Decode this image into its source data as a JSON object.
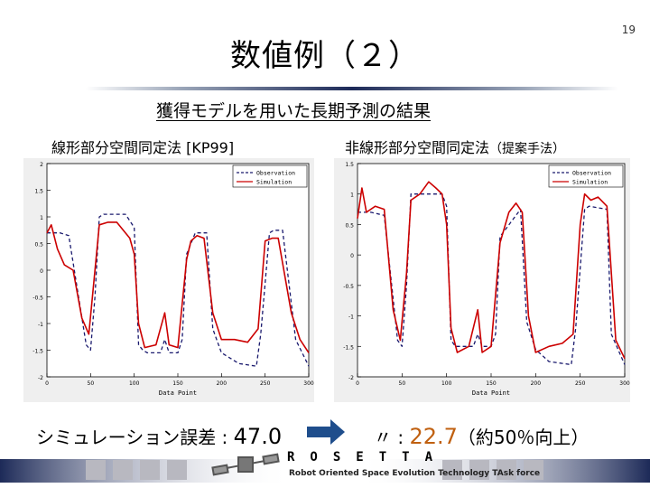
{
  "page_number": "19",
  "title": "数値例（２）",
  "subtitle": "獲得モデルを用いた長期予測の結果",
  "left_label": "線形部分空間同定法 [KP99]",
  "right_label_main": "非線形部分空間同定法",
  "right_label_note": "（提案手法）",
  "result_left_text": "シミュレーション誤差 : ",
  "result_left_value": "47.0",
  "result_right_prefix": "〃 : ",
  "result_right_value": "22.7",
  "result_right_note": "（約50％向上）",
  "logo_text": "ROSETTA",
  "logo_subtext": "Robot Oriented Space Evolution Technology TAsk force",
  "colors": {
    "accent": "#c06010",
    "observation": "#1a1a6e",
    "simulation": "#cc0000",
    "arrow": "#1f4e8c"
  },
  "chart_data": [
    {
      "type": "line",
      "xlabel": "Data Point",
      "xticks": [
        "0",
        "50",
        "100",
        "150",
        "200",
        "250",
        "300"
      ],
      "yticks": [
        "-2",
        "-1.5",
        "-1",
        "-0.5",
        "0",
        "0.5",
        "1",
        "1.5",
        "2"
      ],
      "xlim": [
        0,
        300
      ],
      "ylim": [
        -2,
        2
      ],
      "legend": [
        "Observation",
        "Simulation"
      ],
      "legend_position": "top-right",
      "series": [
        {
          "name": "Observation",
          "style": "dashed",
          "x": [
            0,
            15,
            25,
            45,
            50,
            55,
            60,
            65,
            90,
            100,
            105,
            110,
            115,
            130,
            135,
            140,
            150,
            155,
            160,
            170,
            178,
            183,
            190,
            200,
            220,
            240,
            245,
            255,
            260,
            270,
            285,
            300
          ],
          "y": [
            0.7,
            0.7,
            0.65,
            -1.4,
            -1.5,
            -0.5,
            1.0,
            1.05,
            1.05,
            0.8,
            -1.4,
            -1.5,
            -1.55,
            -1.55,
            -1.3,
            -1.55,
            -1.55,
            -1.3,
            0.3,
            0.7,
            0.7,
            0.7,
            -1.1,
            -1.55,
            -1.75,
            -1.8,
            -1.2,
            0.7,
            0.75,
            0.75,
            -1.3,
            -1.8
          ]
        },
        {
          "name": "Simulation",
          "style": "solid",
          "x": [
            0,
            5,
            12,
            20,
            30,
            40,
            48,
            55,
            60,
            70,
            80,
            95,
            100,
            105,
            112,
            125,
            135,
            140,
            150,
            160,
            165,
            172,
            180,
            190,
            200,
            215,
            230,
            242,
            250,
            258,
            265,
            280,
            290,
            300
          ],
          "y": [
            0.7,
            0.85,
            0.4,
            0.1,
            0.0,
            -0.9,
            -1.2,
            0.0,
            0.85,
            0.9,
            0.9,
            0.6,
            0.3,
            -1.0,
            -1.45,
            -1.4,
            -0.8,
            -1.4,
            -1.45,
            0.2,
            0.55,
            0.65,
            0.6,
            -0.8,
            -1.3,
            -1.3,
            -1.35,
            -1.1,
            0.55,
            0.6,
            0.6,
            -0.8,
            -1.3,
            -1.55
          ]
        }
      ]
    },
    {
      "type": "line",
      "xlabel": "Data Point",
      "xticks": [
        "0",
        "50",
        "100",
        "150",
        "200",
        "250",
        "300"
      ],
      "yticks": [
        "-2",
        "-1.5",
        "-1",
        "-0.5",
        "0",
        "0.5",
        "1",
        "1.5"
      ],
      "xlim": [
        0,
        300
      ],
      "ylim": [
        -2,
        1.5
      ],
      "legend": [
        "Observation",
        "Simulation"
      ],
      "legend_position": "top-right",
      "series": [
        {
          "name": "Observation",
          "style": "dashed",
          "x": [
            0,
            15,
            30,
            45,
            50,
            55,
            60,
            95,
            100,
            105,
            110,
            130,
            135,
            140,
            150,
            155,
            160,
            183,
            190,
            200,
            215,
            240,
            245,
            255,
            260,
            280,
            285,
            300
          ],
          "y": [
            0.7,
            0.7,
            0.65,
            -1.4,
            -1.5,
            -0.5,
            1.0,
            1.0,
            0.8,
            -1.4,
            -1.5,
            -1.5,
            -1.3,
            -1.5,
            -1.5,
            -1.3,
            0.3,
            0.75,
            -1.1,
            -1.55,
            -1.75,
            -1.8,
            -1.2,
            0.75,
            0.8,
            0.75,
            -1.3,
            -1.8
          ]
        },
        {
          "name": "Simulation",
          "style": "solid",
          "x": [
            0,
            5,
            10,
            20,
            30,
            40,
            48,
            55,
            60,
            70,
            80,
            88,
            95,
            100,
            105,
            112,
            125,
            135,
            140,
            150,
            160,
            170,
            178,
            185,
            192,
            200,
            215,
            230,
            242,
            250,
            255,
            262,
            270,
            280,
            290,
            300
          ],
          "y": [
            0.6,
            1.1,
            0.7,
            0.8,
            0.75,
            -0.9,
            -1.4,
            -0.3,
            0.9,
            1.0,
            1.2,
            1.1,
            1.0,
            0.5,
            -1.2,
            -1.6,
            -1.5,
            -0.9,
            -1.6,
            -1.5,
            0.2,
            0.7,
            0.85,
            0.7,
            -1.0,
            -1.6,
            -1.5,
            -1.45,
            -1.3,
            0.5,
            1.0,
            0.9,
            0.95,
            0.8,
            -1.4,
            -1.7
          ]
        }
      ]
    }
  ]
}
